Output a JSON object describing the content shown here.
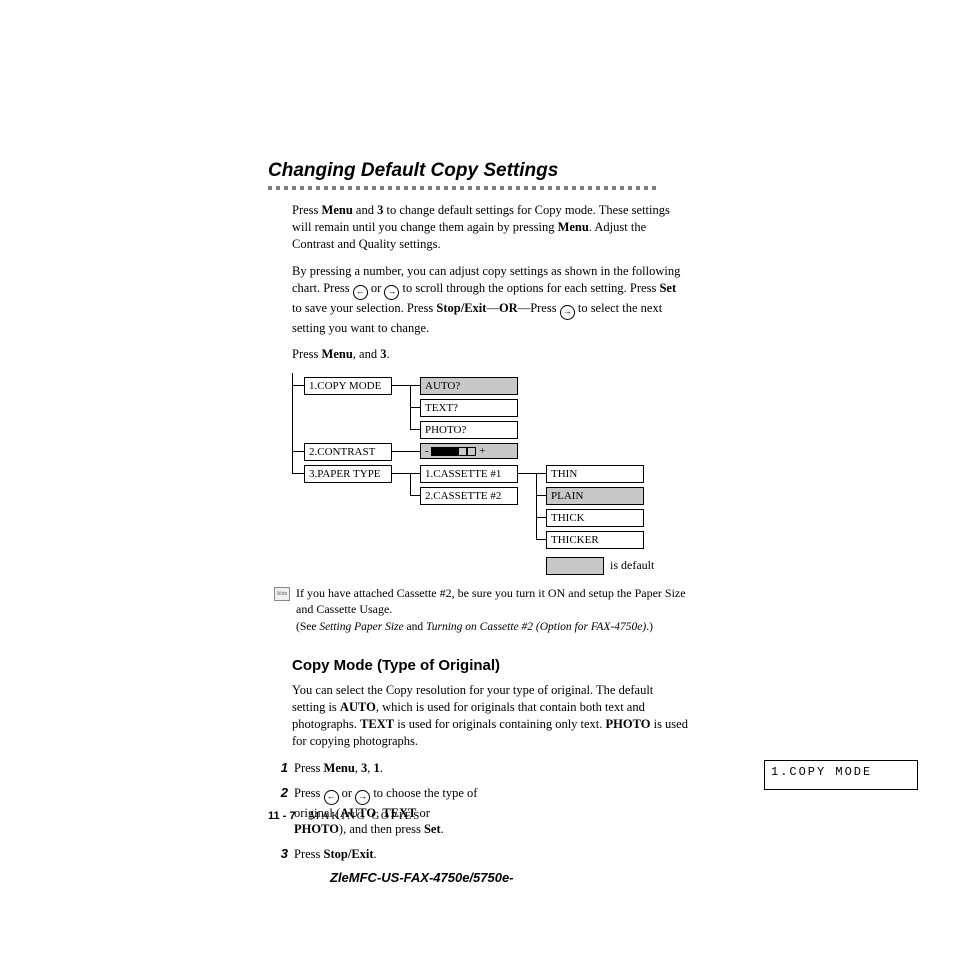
{
  "title": "Changing Default Copy Settings",
  "intro_paragraphs": {
    "p1_pre": "Press ",
    "p1_b1": "Menu",
    "p1_mid1": " and ",
    "p1_b2": "3",
    "p1_mid2": " to change default settings for Copy mode. These settings will remain until you change them again by pressing ",
    "p1_b3": "Menu",
    "p1_end": ". Adjust the  Contrast and Quality settings.",
    "p2_pre": "By pressing a number, you can adjust copy settings as shown in the following chart. Press ",
    "p2_mid1": " or ",
    "p2_mid2": " to scroll through the options for each setting. Press ",
    "p2_b1": "Set",
    "p2_mid3": " to save your selection. Press ",
    "p2_b2": "Stop/Exit",
    "p2_mid4": "—",
    "p2_b3": "OR",
    "p2_mid5": "—Press ",
    "p2_end": " to select the next setting you want to change.",
    "p3_pre": "Press ",
    "p3_b1": "Menu",
    "p3_mid": ", and ",
    "p3_b2": "3",
    "p3_end": "."
  },
  "diagram": {
    "menu1": "1.COPY MODE",
    "menu1_opts": [
      "AUTO?",
      "TEXT?",
      "PHOTO?"
    ],
    "menu2": "2.CONTRAST",
    "menu3": "3.PAPER TYPE",
    "menu3_opts": [
      "1.CASSETTE #1",
      "2.CASSETTE #2"
    ],
    "paper_types": [
      "THIN",
      "PLAIN",
      "THICK",
      "THICKER"
    ],
    "default_label": "is default"
  },
  "note": {
    "line1": "If you have attached Cassette #2, be sure you turn it ON and setup the Paper Size and Cassette Usage.",
    "see_pre": "(See ",
    "see_i1": "Setting Paper Size",
    "see_mid": " and ",
    "see_i2": "Turning on Cassette #2 (Option for FAX-4750e)",
    "see_end": ".)"
  },
  "subheading": "Copy Mode (Type of Original)",
  "copy_mode_intro": {
    "pre": "You can select the Copy resolution for your type of original. The default setting is ",
    "b1": "AUTO",
    "mid1": ", which is used for originals that contain both text and photographs. ",
    "b2": "TEXT",
    "mid2": " is used for originals containing only text. ",
    "b3": "PHOTO",
    "end": " is used for copying photographs."
  },
  "steps": {
    "s1_pre": "Press ",
    "s1_b1": "Menu",
    "s1_m1": ", ",
    "s1_b2": "3",
    "s1_m2": ", ",
    "s1_b3": "1",
    "s1_end": ".",
    "s2_pre": "Press ",
    "s2_m1": " or ",
    "s2_m2": " to choose the type of original (",
    "s2_b1": "AUTO",
    "s2_m3": ", ",
    "s2_b2": "TEXT",
    "s2_m4": " or ",
    "s2_b3": "PHOTO",
    "s2_m5": "), and then press ",
    "s2_b4": "Set",
    "s2_end": ".",
    "s3_pre": "Press ",
    "s3_b1": "Stop/Exit",
    "s3_end": "."
  },
  "lcd": "1.COPY MODE",
  "footer_page": "11 - 7",
  "footer_chapter": "MAKING COPIES",
  "doc_id": "ZleMFC-US-FAX-4750e/5750e-",
  "colors": {
    "shaded": "#c8c8c8",
    "dash": "#808080"
  }
}
